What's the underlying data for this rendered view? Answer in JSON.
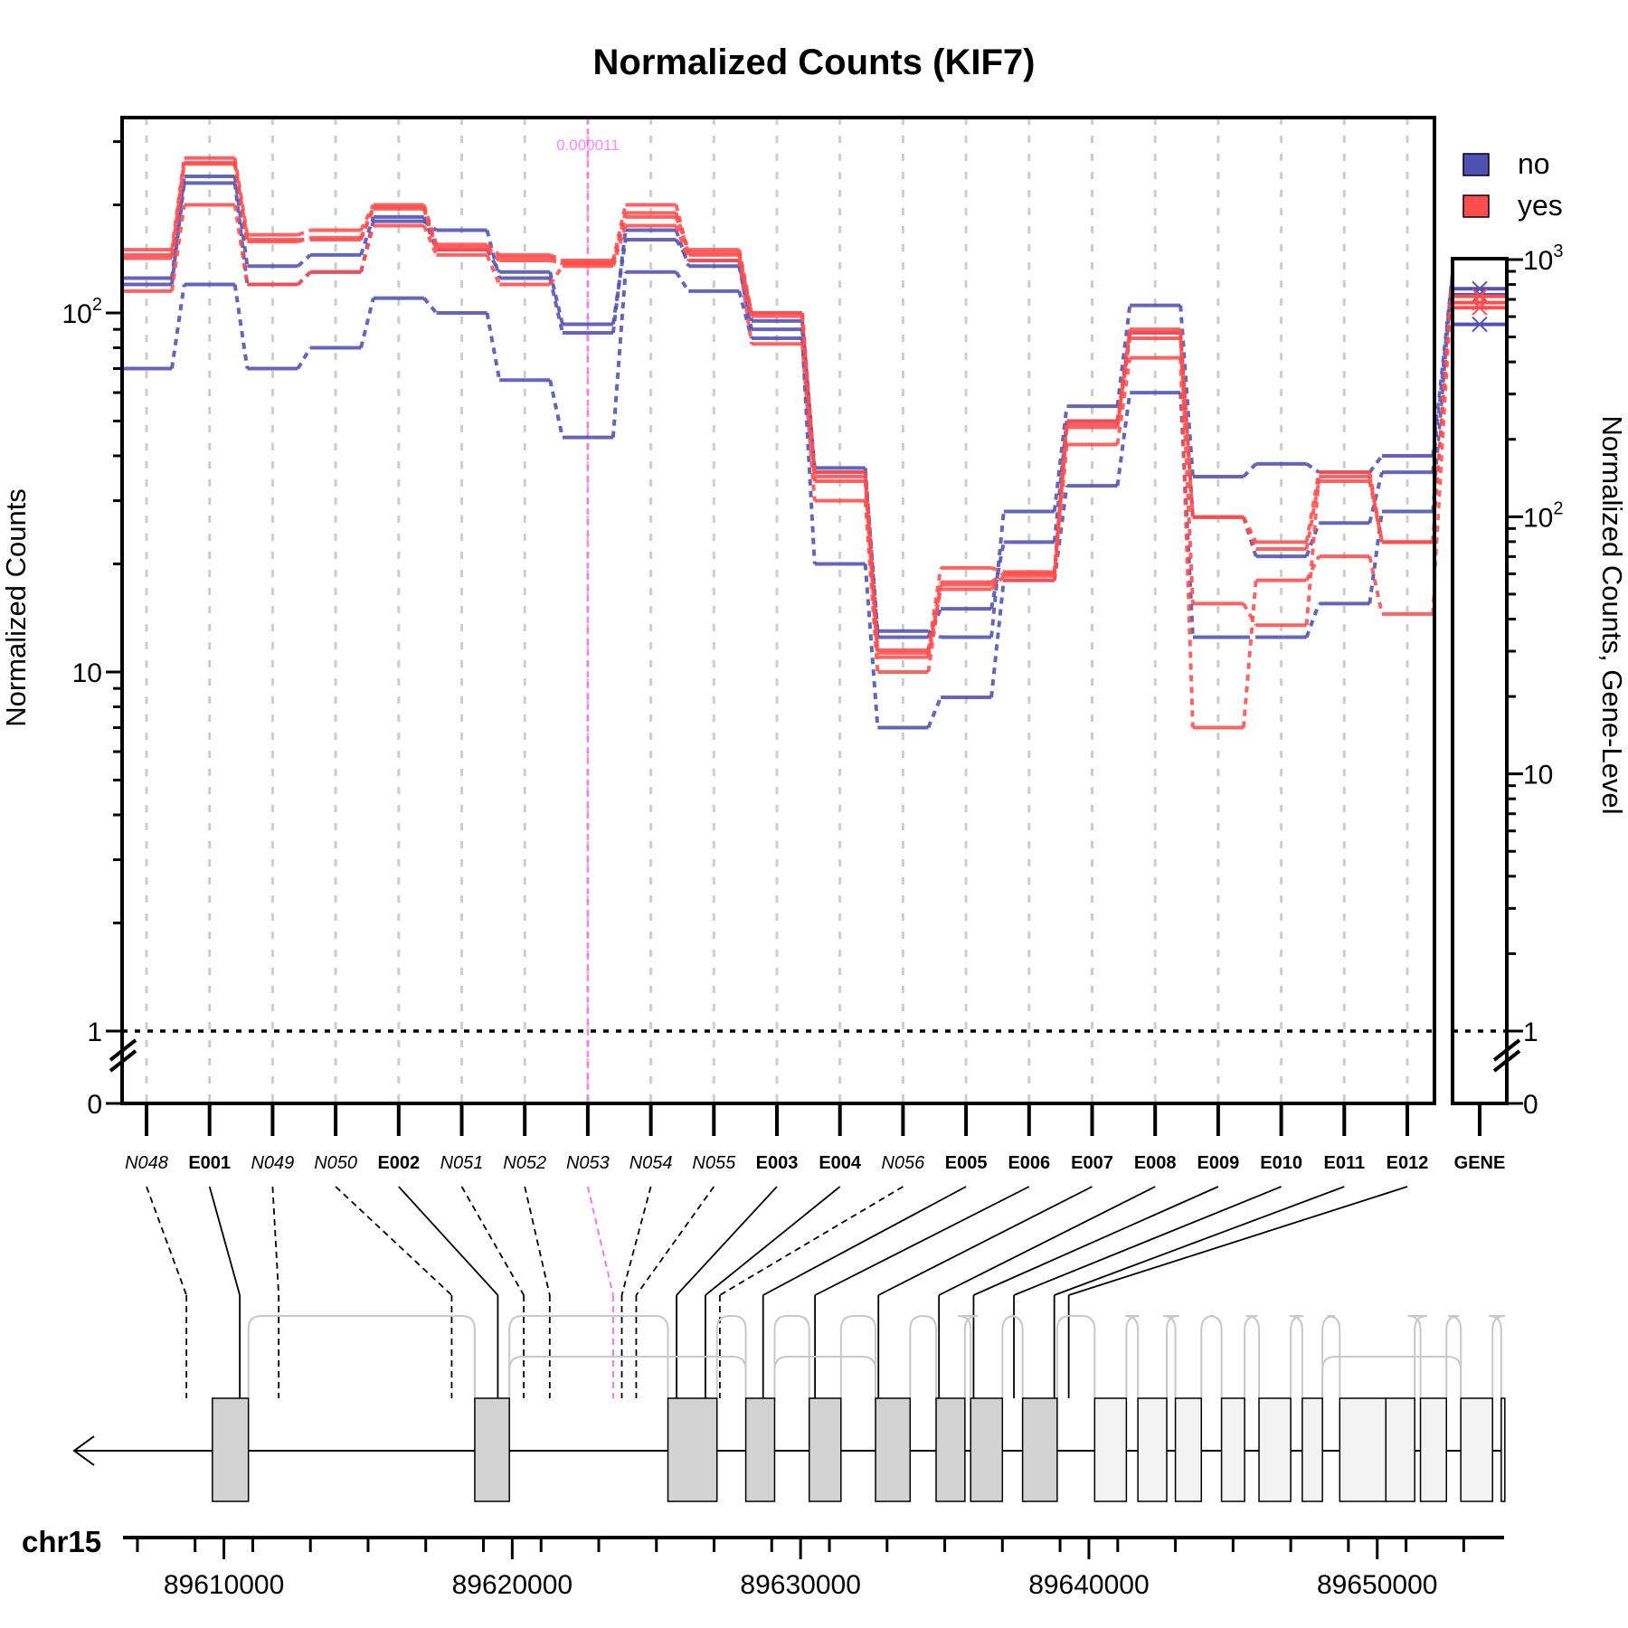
{
  "chart_data": {
    "type": "line",
    "title": "Normalized Counts (KIF7)",
    "ylabel": "Normalized Counts",
    "ylabel_right": "Normalized Counts, Gene-Level",
    "yscale": "log",
    "ylim": [
      1,
      350
    ],
    "yticks_main": [
      {
        "label": "10",
        "sup": "2",
        "value": 100
      },
      {
        "label": "10",
        "sup": "",
        "value": 10
      },
      {
        "label": "1",
        "sup": "",
        "value": 1
      },
      {
        "label": "0",
        "sup": "",
        "value": 0
      }
    ],
    "yticks_right": [
      {
        "label": "10",
        "sup": "3",
        "value": 1000
      },
      {
        "label": "10",
        "sup": "2",
        "value": 100
      },
      {
        "label": "10",
        "sup": "",
        "value": 10
      },
      {
        "label": "1",
        "sup": "",
        "value": 1
      },
      {
        "label": "0",
        "sup": "",
        "value": 0
      }
    ],
    "grid": "vertical dashed at each feature",
    "legend": {
      "placement": "top-right",
      "entries": [
        {
          "name": "no",
          "color": "#5050b4"
        },
        {
          "name": "yes",
          "color": "#ff4d4d"
        }
      ]
    },
    "categories": [
      "N048",
      "E001",
      "N049",
      "N050",
      "E002",
      "N051",
      "N052",
      "N053",
      "N054",
      "N055",
      "E003",
      "E004",
      "N056",
      "E005",
      "E006",
      "E007",
      "E008",
      "E009",
      "E010",
      "E011",
      "E012"
    ],
    "category_italic": [
      true,
      false,
      true,
      true,
      false,
      true,
      true,
      true,
      true,
      true,
      false,
      false,
      true,
      false,
      false,
      false,
      false,
      false,
      false,
      false,
      false
    ],
    "highlight": {
      "category": "N053",
      "label": "0.000011",
      "color": "#ff66ff"
    },
    "series": [
      {
        "group": "no",
        "values": [
          70,
          120,
          70,
          80,
          110,
          100,
          65,
          45,
          130,
          115,
          85,
          20,
          7,
          8.5,
          18,
          33,
          60,
          12.5,
          12.5,
          15.5,
          28
        ]
      },
      {
        "group": "no",
        "values": [
          120,
          230,
          120,
          130,
          180,
          170,
          125,
          88,
          170,
          135,
          90,
          36,
          13,
          12.5,
          28,
          55,
          105,
          35,
          38,
          36,
          40
        ]
      },
      {
        "group": "no",
        "values": [
          125,
          240,
          135,
          145,
          185,
          150,
          130,
          93,
          160,
          140,
          95,
          37,
          12.5,
          15,
          23,
          50,
          88,
          27,
          21,
          26,
          36
        ]
      },
      {
        "group": "yes",
        "values": [
          150,
          270,
          165,
          170,
          200,
          155,
          145,
          140,
          200,
          145,
          100,
          36,
          11.5,
          19.5,
          19,
          50,
          88,
          27,
          23,
          36,
          23
        ]
      },
      {
        "group": "yes",
        "values": [
          145,
          260,
          160,
          160,
          195,
          150,
          140,
          138,
          185,
          150,
          100,
          34,
          11,
          17,
          18.5,
          48,
          90,
          15.5,
          13.5,
          35,
          23
        ]
      },
      {
        "group": "yes",
        "values": [
          115,
          200,
          120,
          130,
          175,
          145,
          120,
          135,
          175,
          140,
          82,
          30,
          10,
          17.5,
          18,
          43,
          75,
          7,
          18,
          21,
          14.5
        ]
      },
      {
        "group": "yes",
        "values": [
          142,
          262,
          158,
          162,
          197,
          152,
          143,
          137,
          190,
          147,
          98,
          35,
          11.3,
          17.8,
          18.8,
          49,
          85,
          27,
          22,
          34,
          23
        ]
      }
    ],
    "gene_panel": {
      "label": "GENE",
      "no_values": [
        770,
        730,
        560
      ],
      "yes_values": [
        720,
        680,
        650
      ]
    },
    "genome": {
      "chromosome": "chr15",
      "start": 89606500,
      "end": 89654400,
      "tick_labels": [
        89610000,
        89620000,
        89630000,
        89640000,
        89650000
      ],
      "exons": [
        {
          "start": 89609600,
          "end": 89610850,
          "coding": true
        },
        {
          "start": 89618700,
          "end": 89619900,
          "coding": true
        },
        {
          "start": 89625400,
          "end": 89627100,
          "coding": true
        },
        {
          "start": 89628100,
          "end": 89629100,
          "coding": true
        },
        {
          "start": 89630300,
          "end": 89631400,
          "coding": true
        },
        {
          "start": 89632600,
          "end": 89633800,
          "coding": true
        },
        {
          "start": 89634700,
          "end": 89635700,
          "coding": true
        },
        {
          "start": 89635900,
          "end": 89637000,
          "coding": true
        },
        {
          "start": 89637700,
          "end": 89638900,
          "coding": true
        },
        {
          "start": 89640200,
          "end": 89641300,
          "coding": false
        },
        {
          "start": 89641700,
          "end": 89642700,
          "coding": false
        },
        {
          "start": 89643000,
          "end": 89643900,
          "coding": false
        },
        {
          "start": 89644600,
          "end": 89645400,
          "coding": false
        },
        {
          "start": 89645900,
          "end": 89647000,
          "coding": false
        },
        {
          "start": 89647400,
          "end": 89648100,
          "coding": false
        },
        {
          "start": 89648700,
          "end": 89650300,
          "coding": false
        },
        {
          "start": 89650300,
          "end": 89651300,
          "coding": false
        },
        {
          "start": 89651500,
          "end": 89652400,
          "coding": false
        },
        {
          "start": 89652900,
          "end": 89654000,
          "coding": false
        },
        {
          "start": 89654300,
          "end": 89654400,
          "coding": false
        }
      ],
      "feature_positions": [
        89608700,
        89610550,
        89611900,
        89617900,
        89619500,
        89620400,
        89621300,
        89623500,
        89623800,
        89624300,
        89625700,
        89626700,
        89627200,
        89628700,
        89630500,
        89632700,
        89634800,
        89636000,
        89637400,
        89638800,
        89639300
      ]
    }
  }
}
